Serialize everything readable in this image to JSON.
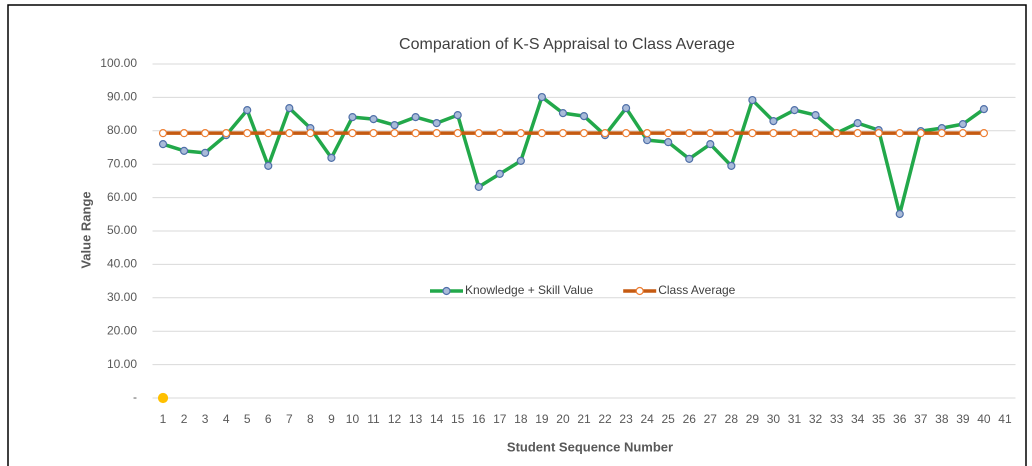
{
  "chart_data": {
    "type": "line",
    "title": "Comparation of K-S Appraisal to Class Average",
    "xlabel": "Student Sequence Number",
    "ylabel": "Value Range",
    "categories": [
      "1",
      "2",
      "3",
      "4",
      "5",
      "6",
      "7",
      "8",
      "9",
      "10",
      "11",
      "12",
      "13",
      "14",
      "15",
      "16",
      "17",
      "18",
      "19",
      "20",
      "21",
      "22",
      "23",
      "24",
      "25",
      "26",
      "27",
      "28",
      "29",
      "30",
      "31",
      "32",
      "33",
      "34",
      "35",
      "36",
      "37",
      "38",
      "39",
      "40",
      "41"
    ],
    "series": [
      {
        "name": "Knowledge + Skill Value",
        "color": "#22a84a",
        "marker_color": "#4f6fa8",
        "values": [
          76,
          74,
          73.4,
          78.7,
          86.2,
          69.5,
          86.8,
          80.8,
          71.9,
          84.1,
          83.5,
          81.7,
          84.1,
          82.3,
          84.7,
          63.2,
          67.1,
          71,
          90.1,
          85.3,
          84.4,
          78.7,
          86.8,
          77.2,
          76.6,
          71.6,
          76,
          69.5,
          89.2,
          82.9,
          86.2,
          84.7,
          79.3,
          82.3,
          80.2,
          55.1,
          79.9,
          80.8,
          82,
          86.5,
          null
        ]
      },
      {
        "name": "Class Average",
        "color": "#c55a11",
        "marker_color": "#ed7d31",
        "values": [
          79.3,
          79.3,
          79.3,
          79.3,
          79.3,
          79.3,
          79.3,
          79.3,
          79.3,
          79.3,
          79.3,
          79.3,
          79.3,
          79.3,
          79.3,
          79.3,
          79.3,
          79.3,
          79.3,
          79.3,
          79.3,
          79.3,
          79.3,
          79.3,
          79.3,
          79.3,
          79.3,
          79.3,
          79.3,
          79.3,
          79.3,
          79.3,
          79.3,
          79.3,
          79.3,
          79.3,
          79.3,
          79.3,
          79.3,
          79.3,
          null
        ]
      },
      {
        "color": "#ffc000",
        "marker_color": "#ffc000",
        "values": [
          0,
          null,
          null,
          null,
          null,
          null,
          null,
          null,
          null,
          null,
          null,
          null,
          null,
          null,
          null,
          null,
          null,
          null,
          null,
          null,
          null,
          null,
          null,
          null,
          null,
          null,
          null,
          null,
          null,
          null,
          null,
          null,
          null,
          null,
          null,
          null,
          null,
          null,
          null,
          null,
          null
        ]
      }
    ],
    "ylim": [
      0,
      100
    ],
    "yticks": [
      {
        "value": 0,
        "label": "-"
      },
      {
        "value": 10,
        "label": "10.00"
      },
      {
        "value": 20,
        "label": "20.00"
      },
      {
        "value": 30,
        "label": "30.00"
      },
      {
        "value": 40,
        "label": "40.00"
      },
      {
        "value": 50,
        "label": "50.00"
      },
      {
        "value": 60,
        "label": "60.00"
      },
      {
        "value": 70,
        "label": "70.00"
      },
      {
        "value": 80,
        "label": "80.00"
      },
      {
        "value": 90,
        "label": "90.00"
      },
      {
        "value": 100,
        "label": "100.00"
      }
    ],
    "grid": true,
    "legend": "center"
  }
}
